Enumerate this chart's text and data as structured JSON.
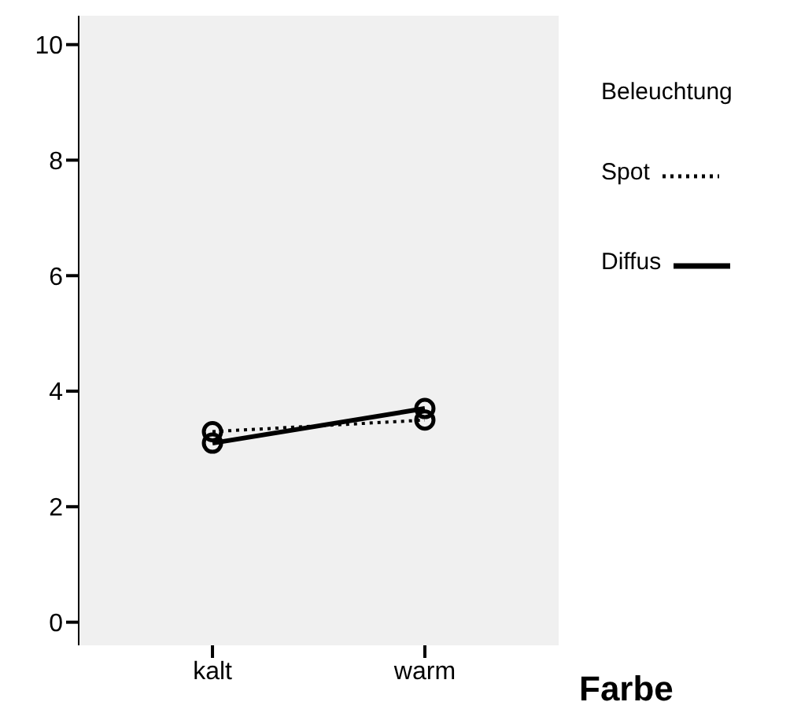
{
  "chart_data": {
    "type": "line",
    "xlabel": "Farbe",
    "legend_title": "Beleuchtung",
    "categories": [
      "kalt",
      "warm"
    ],
    "ylim": [
      -0.4,
      10.5
    ],
    "yticks": [
      0,
      2,
      4,
      6,
      8,
      10
    ],
    "legend": "right",
    "marker": "circle",
    "series": [
      {
        "name": "Spot",
        "color": "#000000",
        "line_style": "dotted",
        "values": [
          3.3,
          3.5
        ]
      },
      {
        "name": "Diffus",
        "color": "#000000",
        "line_style": "solid",
        "values": [
          3.1,
          3.7
        ]
      }
    ]
  }
}
